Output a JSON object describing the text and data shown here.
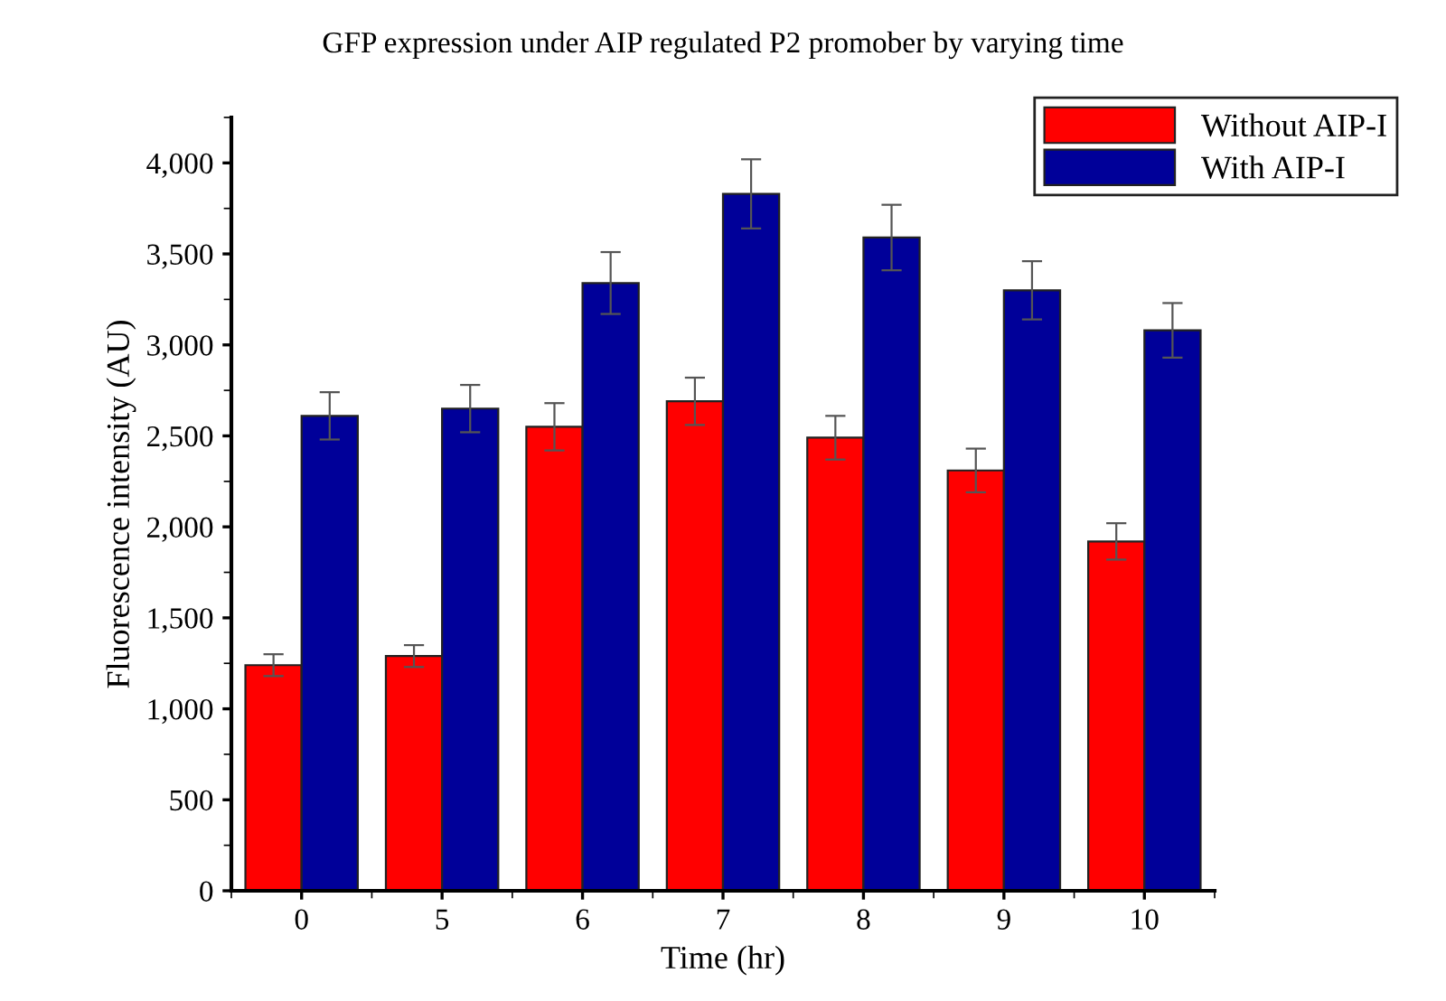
{
  "chart_data": {
    "type": "bar",
    "title": "GFP expression under AIP regulated P2 promober by varying time",
    "xlabel": "Time (hr)",
    "ylabel": "Fluorescence intensity (AU)",
    "categories": [
      "0",
      "5",
      "6",
      "7",
      "8",
      "9",
      "10"
    ],
    "series": [
      {
        "name": "Without AIP-I",
        "color": "#ff0000",
        "values": [
          1240,
          1290,
          2550,
          2690,
          2490,
          2310,
          1920
        ],
        "errors": [
          60,
          60,
          130,
          130,
          120,
          120,
          100
        ]
      },
      {
        "name": "With AIP-I",
        "color": "#000099",
        "values": [
          2610,
          2650,
          3340,
          3830,
          3590,
          3300,
          3080
        ],
        "errors": [
          130,
          130,
          170,
          190,
          180,
          160,
          150
        ]
      }
    ],
    "ylim": [
      0,
      4250
    ],
    "yticks": [
      0,
      500,
      {
        "value": 1000,
        "label": "1,000"
      },
      {
        "value": 1500,
        "label": "1,500"
      },
      {
        "value": 2000,
        "label": "2,000"
      },
      {
        "value": 2500,
        "label": "2,500"
      },
      {
        "value": 3000,
        "label": "3,000"
      },
      {
        "value": 3500,
        "label": "3,500"
      },
      {
        "value": 4000,
        "label": "4,000"
      }
    ],
    "grid": false,
    "legend": "top right"
  }
}
